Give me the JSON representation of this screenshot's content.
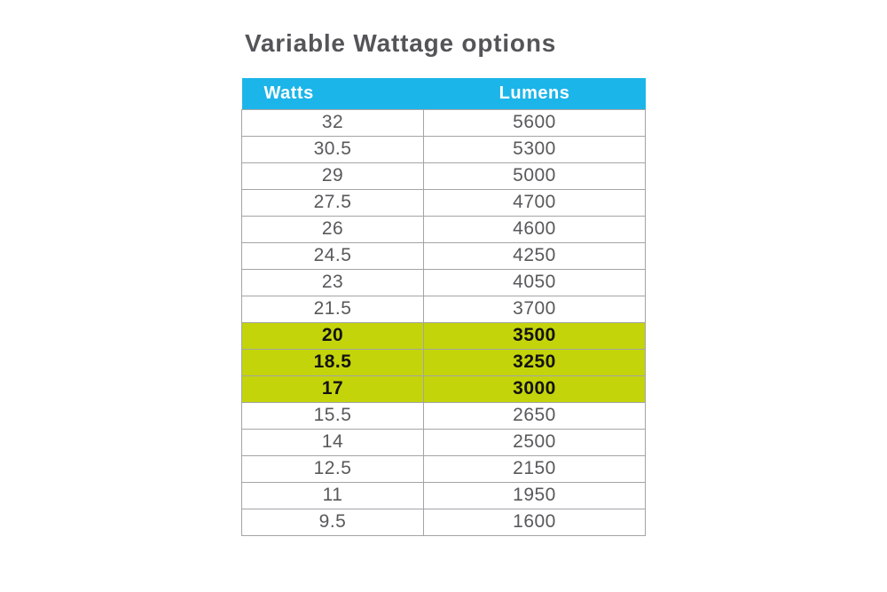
{
  "title": "Variable Wattage options",
  "chart_data": {
    "type": "table",
    "title": "Variable Wattage options",
    "columns": [
      "Watts",
      "Lumens"
    ],
    "rows": [
      {
        "watts": "32",
        "lumens": "5600",
        "highlighted": false
      },
      {
        "watts": "30.5",
        "lumens": "5300",
        "highlighted": false
      },
      {
        "watts": "29",
        "lumens": "5000",
        "highlighted": false
      },
      {
        "watts": "27.5",
        "lumens": "4700",
        "highlighted": false
      },
      {
        "watts": "26",
        "lumens": "4600",
        "highlighted": false
      },
      {
        "watts": "24.5",
        "lumens": "4250",
        "highlighted": false
      },
      {
        "watts": "23",
        "lumens": "4050",
        "highlighted": false
      },
      {
        "watts": "21.5",
        "lumens": "3700",
        "highlighted": false
      },
      {
        "watts": "20",
        "lumens": "3500",
        "highlighted": true
      },
      {
        "watts": "18.5",
        "lumens": "3250",
        "highlighted": true
      },
      {
        "watts": "17",
        "lumens": "3000",
        "highlighted": true
      },
      {
        "watts": "15.5",
        "lumens": "2650",
        "highlighted": false
      },
      {
        "watts": "14",
        "lumens": "2500",
        "highlighted": false
      },
      {
        "watts": "12.5",
        "lumens": "2150",
        "highlighted": false
      },
      {
        "watts": "11",
        "lumens": "1950",
        "highlighted": false
      },
      {
        "watts": "9.5",
        "lumens": "1600",
        "highlighted": false
      }
    ]
  },
  "colors": {
    "header_bg": "#1cb5e9",
    "header_text": "#ffffff",
    "highlight_bg": "#c4d40a",
    "highlight_text": "#131313",
    "body_text": "#58595b",
    "border_gray": "#a2a4a6",
    "title_text": "#545559",
    "page_bg": "#ffffff"
  }
}
